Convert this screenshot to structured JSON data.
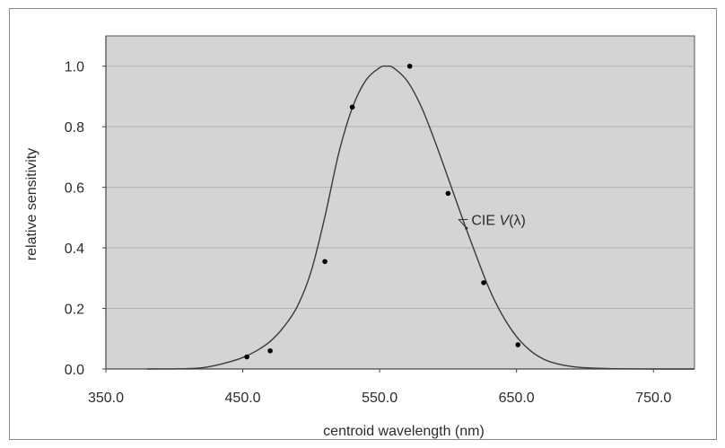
{
  "chart_data": {
    "type": "scatter",
    "title": "",
    "xlabel": "centroid wavelength (nm)",
    "ylabel": "relative sensitivity",
    "xlim": [
      350.0,
      780.0
    ],
    "ylim": [
      0.0,
      1.1
    ],
    "x_ticks": [
      350.0,
      450.0,
      550.0,
      650.0,
      750.0
    ],
    "x_tick_labels": [
      "350.0",
      "450.0",
      "550.0",
      "650.0",
      "750.0"
    ],
    "y_ticks": [
      0.0,
      0.2,
      0.4,
      0.6,
      0.8,
      1.0
    ],
    "y_tick_labels": [
      "0.0",
      "0.2",
      "0.4",
      "0.6",
      "0.8",
      "1.0"
    ],
    "grid": "horizontal",
    "plot_background": "#d4d4d4",
    "series": [
      {
        "kind": "points",
        "color": "#000000",
        "x": [
          453,
          470,
          510,
          530,
          572,
          600,
          626,
          651
        ],
        "y": [
          0.04,
          0.06,
          0.355,
          0.865,
          1.0,
          0.58,
          0.285,
          0.08
        ]
      },
      {
        "name": "CIE V(λ)",
        "kind": "curve",
        "color": "#3a3a3a",
        "x": [
          380,
          400,
          410,
          420,
          430,
          440,
          450,
          460,
          470,
          480,
          490,
          500,
          510,
          520,
          530,
          540,
          550,
          555,
          560,
          570,
          580,
          590,
          600,
          610,
          620,
          630,
          640,
          650,
          660,
          670,
          680,
          690,
          700,
          720,
          750,
          780
        ],
        "y": [
          0.0,
          0.0004,
          0.0012,
          0.004,
          0.0116,
          0.023,
          0.038,
          0.06,
          0.091,
          0.139,
          0.208,
          0.323,
          0.503,
          0.71,
          0.862,
          0.954,
          0.995,
          1.0,
          0.995,
          0.952,
          0.87,
          0.757,
          0.631,
          0.503,
          0.381,
          0.265,
          0.175,
          0.107,
          0.061,
          0.032,
          0.017,
          0.0082,
          0.0041,
          0.001,
          0.0001,
          0.0
        ]
      }
    ],
    "annotations": [
      {
        "text_prefix": "CIE ",
        "text_italic": "V",
        "text_suffix": "(λ)",
        "x": 617,
        "y": 0.47,
        "points_to_x": 612,
        "points_to_y": 0.48
      }
    ]
  }
}
